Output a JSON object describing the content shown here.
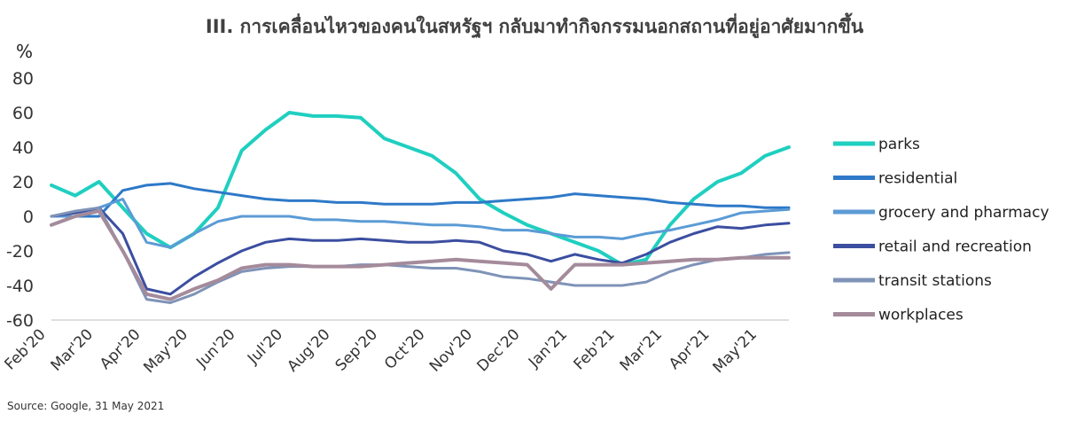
{
  "chart_data": {
    "type": "line",
    "title": "III. การเคลื่อนไหวของคนในสหรัฐฯ กลับมาทำกิจกรรมนอกสถานที่อยู่อาศัยมากขึ้น",
    "ylabel": "%",
    "xlabel": "",
    "source": "Source: Google, 31 May 2021",
    "ylim": [
      -60,
      80
    ],
    "yticks": [
      80,
      60,
      40,
      20,
      0,
      -20,
      -40,
      -60
    ],
    "ytick_labels": [
      "80",
      "60",
      "40",
      "20",
      "0",
      "-20",
      "-40",
      "-60"
    ],
    "grid": false,
    "legend_position": "right",
    "x_ticks": [
      "Feb'20",
      "Mar'20",
      "Apr'20",
      "May'20",
      "Jun'20",
      "Jul'20",
      "Aug'20",
      "Sep'20",
      "Oct'20",
      "Nov'20",
      "Dec'20",
      "Jan'21",
      "Feb'21",
      "Mar'21",
      "Apr'21",
      "May'21"
    ],
    "x": [
      "Feb'20",
      "mid Feb'20",
      "Mar'20",
      "mid Mar'20",
      "Apr'20",
      "mid Apr'20",
      "May'20",
      "mid May'20",
      "Jun'20",
      "mid Jun'20",
      "Jul'20",
      "mid Jul'20",
      "Aug'20",
      "mid Aug'20",
      "Sep'20",
      "mid Sep'20",
      "Oct'20",
      "mid Oct'20",
      "Nov'20",
      "mid Nov'20",
      "Dec'20",
      "mid Dec'20",
      "Jan'21",
      "mid Jan'21",
      "Feb'21",
      "mid Feb'21",
      "Mar'21",
      "mid Mar'21",
      "Apr'21",
      "mid Apr'21",
      "May'21",
      "end May'21"
    ],
    "series": [
      {
        "name": "parks",
        "color": "#1fcfc0",
        "width": 4,
        "values": [
          18,
          12,
          20,
          5,
          -10,
          -18,
          -10,
          5,
          38,
          50,
          60,
          58,
          58,
          57,
          45,
          40,
          35,
          25,
          10,
          2,
          -5,
          -10,
          -15,
          -20,
          -28,
          -25,
          -5,
          10,
          20,
          25,
          35,
          40
        ]
      },
      {
        "name": "residential",
        "color": "#2e79c8",
        "width": 3,
        "values": [
          0,
          0,
          0,
          15,
          18,
          19,
          16,
          14,
          12,
          10,
          9,
          9,
          8,
          8,
          7,
          7,
          7,
          8,
          8,
          9,
          10,
          11,
          13,
          12,
          11,
          10,
          8,
          7,
          6,
          6,
          5,
          5
        ]
      },
      {
        "name": "grocery and pharmacy",
        "color": "#5b9bd5",
        "width": 3,
        "values": [
          0,
          0,
          5,
          10,
          -15,
          -18,
          -10,
          -3,
          0,
          0,
          0,
          -2,
          -2,
          -3,
          -3,
          -4,
          -5,
          -5,
          -6,
          -8,
          -8,
          -10,
          -12,
          -12,
          -13,
          -10,
          -8,
          -5,
          -2,
          2,
          3,
          4
        ]
      },
      {
        "name": "retail and recreation",
        "color": "#3b4ea0",
        "width": 3,
        "values": [
          0,
          2,
          5,
          -10,
          -42,
          -45,
          -35,
          -27,
          -20,
          -15,
          -13,
          -14,
          -14,
          -13,
          -14,
          -15,
          -15,
          -14,
          -15,
          -20,
          -22,
          -26,
          -22,
          -25,
          -27,
          -22,
          -15,
          -10,
          -6,
          -7,
          -5,
          -4
        ]
      },
      {
        "name": "transit stations",
        "color": "#7f93b8",
        "width": 3,
        "values": [
          0,
          3,
          5,
          -20,
          -48,
          -50,
          -45,
          -38,
          -32,
          -30,
          -29,
          -29,
          -29,
          -28,
          -28,
          -29,
          -30,
          -30,
          -32,
          -35,
          -36,
          -38,
          -40,
          -40,
          -40,
          -38,
          -32,
          -28,
          -25,
          -24,
          -22,
          -21
        ]
      },
      {
        "name": "workplaces",
        "color": "#a48b9b",
        "width": 4,
        "values": [
          -5,
          0,
          3,
          -20,
          -45,
          -48,
          -42,
          -37,
          -30,
          -28,
          -28,
          -29,
          -29,
          -29,
          -28,
          -27,
          -26,
          -25,
          -26,
          -27,
          -28,
          -42,
          -28,
          -28,
          -28,
          -27,
          -26,
          -25,
          -25,
          -24,
          -24,
          -24
        ]
      }
    ]
  }
}
